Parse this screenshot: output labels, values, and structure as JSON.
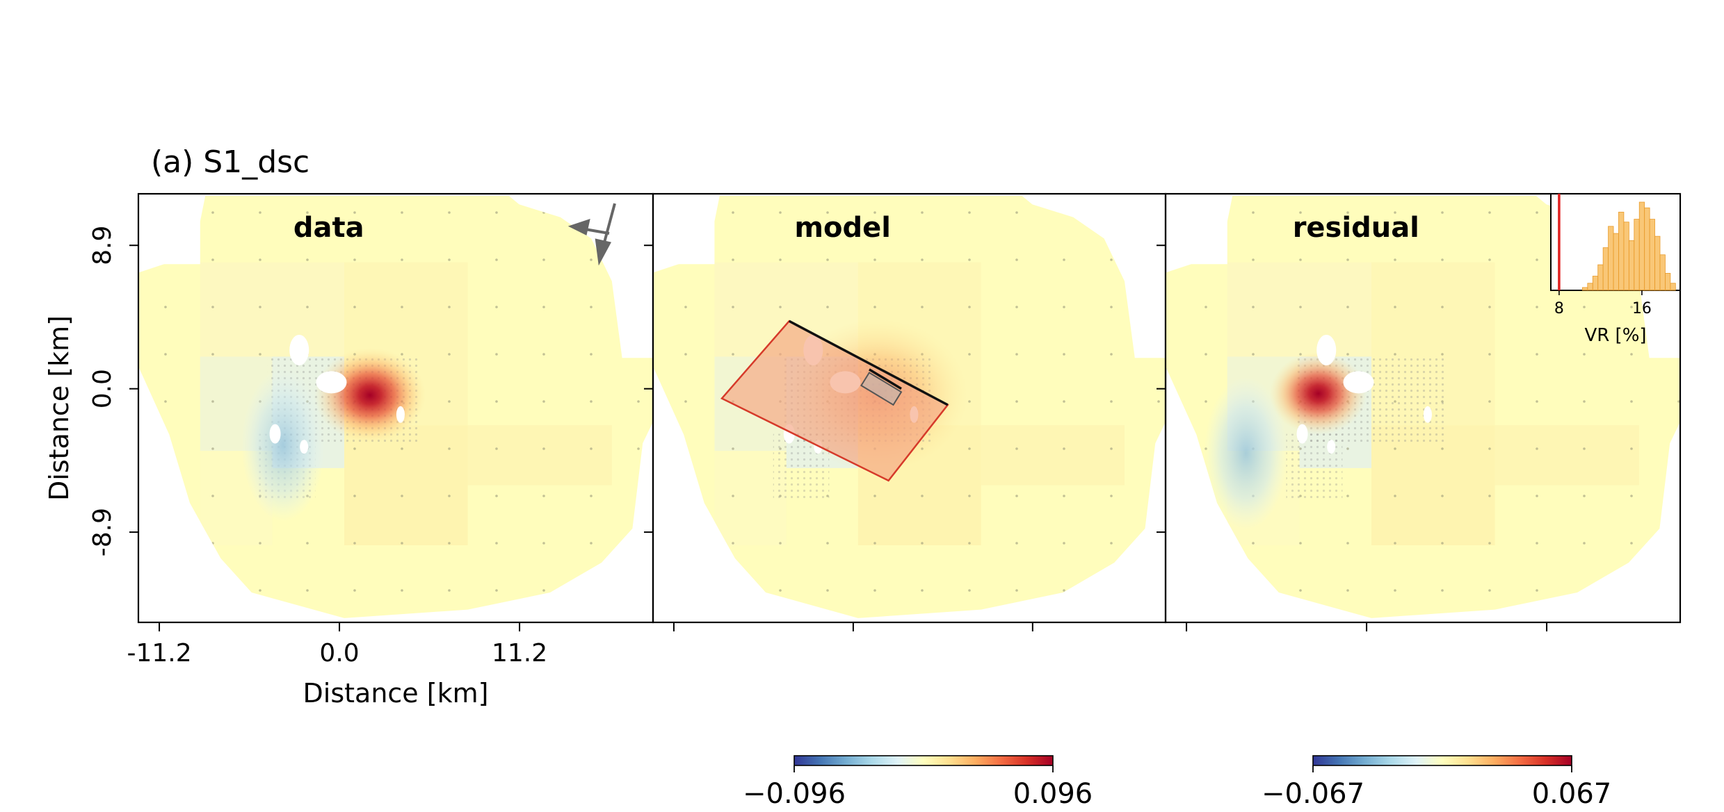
{
  "figure": {
    "title": "(a) S1_dsc"
  },
  "chart_data": [
    {
      "type": "heatmap",
      "panel": "data",
      "title": "data",
      "xlabel": "Distance [km]",
      "ylabel": "Distance [km]",
      "x_ticks": [
        -11.2,
        0.0,
        11.2
      ],
      "x_tick_labels": [
        "-11.2",
        "0.0",
        "11.2"
      ],
      "y_ticks": [
        8.9,
        0.0,
        -8.9
      ],
      "y_tick_labels": [
        "8.9",
        "0.0",
        "-8.9"
      ],
      "xlim": [
        -12.5,
        19.5
      ],
      "ylim": [
        -14.5,
        12.1
      ],
      "peak_center": [
        1.9,
        -0.4
      ],
      "peak_value": 0.096,
      "negative_center": [
        -3.5,
        -3.5
      ],
      "negative_value": -0.02,
      "colormap": "RdYlBu_r",
      "clim": [
        -0.096,
        0.096
      ],
      "annotation": "look-direction-arrows"
    },
    {
      "type": "heatmap",
      "panel": "model",
      "title": "model",
      "x_ticks": [
        -11.2,
        0.0,
        11.2
      ],
      "y_ticks": [
        8.9,
        0.0,
        -8.9
      ],
      "xlim": [
        -12.5,
        19.5
      ],
      "ylim": [
        -14.5,
        12.1
      ],
      "colormap": "RdYlBu_r",
      "clim": [
        -0.096,
        0.096
      ],
      "fault_outline": [
        [
          -4.0,
          4.2
        ],
        [
          5.9,
          -1.0
        ],
        [
          2.2,
          -5.7
        ],
        [
          -8.2,
          -0.6
        ]
      ],
      "fault_top_edge": [
        [
          -4.0,
          4.2
        ],
        [
          5.9,
          -1.0
        ]
      ],
      "source_box": [
        [
          1.0,
          1.0
        ],
        [
          3.0,
          -0.2
        ],
        [
          2.5,
          -1.0
        ],
        [
          0.5,
          0.2
        ]
      ],
      "source_top_edge": [
        [
          1.0,
          1.2
        ],
        [
          3.0,
          0.0
        ]
      ]
    },
    {
      "type": "heatmap",
      "panel": "residual",
      "title": "residual",
      "x_ticks": [
        -11.2,
        0.0,
        11.2
      ],
      "y_ticks": [
        8.9,
        0.0,
        -8.9
      ],
      "xlim": [
        -12.5,
        19.5
      ],
      "ylim": [
        -14.5,
        12.1
      ],
      "peak_center": [
        -3.0,
        -0.3
      ],
      "peak_value": 0.067,
      "negative_center": [
        -7.5,
        -4.0
      ],
      "negative_value": -0.02,
      "colormap": "RdYlBu_r",
      "clim": [
        -0.067,
        0.067
      ]
    },
    {
      "type": "bar",
      "panel": "inset-histogram",
      "xlabel": "VR [%]",
      "x_ticks": [
        8,
        16
      ],
      "x_tick_labels": [
        "8",
        "16"
      ],
      "xlim": [
        7.2,
        19.7
      ],
      "bins": [
        10.5,
        11.0,
        11.5,
        12.0,
        12.5,
        13.0,
        13.5,
        14.0,
        14.5,
        15.0,
        15.5,
        16.0,
        16.5,
        17.0,
        17.5,
        18.0,
        18.5,
        19.0
      ],
      "counts": [
        2,
        5,
        10,
        18,
        30,
        45,
        40,
        55,
        48,
        35,
        50,
        62,
        58,
        50,
        38,
        25,
        12,
        5
      ],
      "reference_line_x": 8.0,
      "bar_color": "#f7b44a",
      "line_color": "#e02020"
    },
    {
      "type": "heatmap",
      "panel": "colorbar",
      "colormap": "RdYlBu_r",
      "range": [
        -0.096,
        0.096
      ],
      "tick_labels": [
        "−0.096",
        "0.096"
      ]
    },
    {
      "type": "heatmap",
      "panel": "colorbar",
      "colormap": "RdYlBu_r",
      "range": [
        -0.067,
        0.067
      ],
      "tick_labels": [
        "−0.067",
        "0.067"
      ]
    }
  ]
}
